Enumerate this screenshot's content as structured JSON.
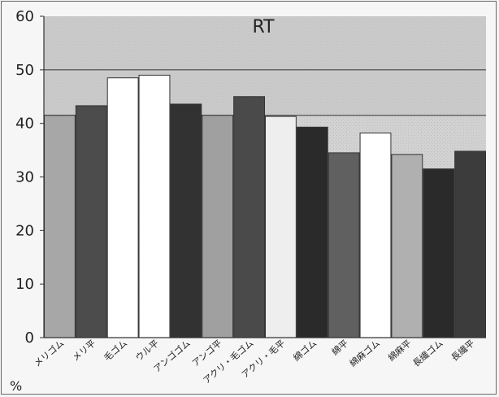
{
  "chart_data": {
    "type": "bar",
    "title": "RT",
    "ylabel_unit": "%",
    "ylim": [
      0,
      60
    ],
    "yticks": [
      0,
      10,
      20,
      30,
      40,
      50,
      60
    ],
    "grid": false,
    "reference_lines": [
      41.5,
      50
    ],
    "categories": [
      "メリゴム",
      "メリ平",
      "毛ゴム",
      "ウル平",
      "アンゴゴム",
      "アンゴ平",
      "アクリ・毛ゴム",
      "アクリ・毛平",
      "綿ゴム",
      "綿平",
      "綿麻ゴム",
      "綿麻平",
      "長繊ゴム",
      "長繊平"
    ],
    "values": [
      41.5,
      43.3,
      48.5,
      49.0,
      43.6,
      41.5,
      45.0,
      41.3,
      39.3,
      34.5,
      38.2,
      34.2,
      31.5,
      34.8
    ],
    "bar_colors": [
      "#a7a7a7",
      "#4c4c4c",
      "#ffffff",
      "#ffffff",
      "#323232",
      "#a0a0a0",
      "#4a4a4a",
      "#eeeeee",
      "#2a2a2a",
      "#606060",
      "#ffffff",
      "#b0b0b0",
      "#2a2a2a",
      "#3c3c3c"
    ]
  }
}
